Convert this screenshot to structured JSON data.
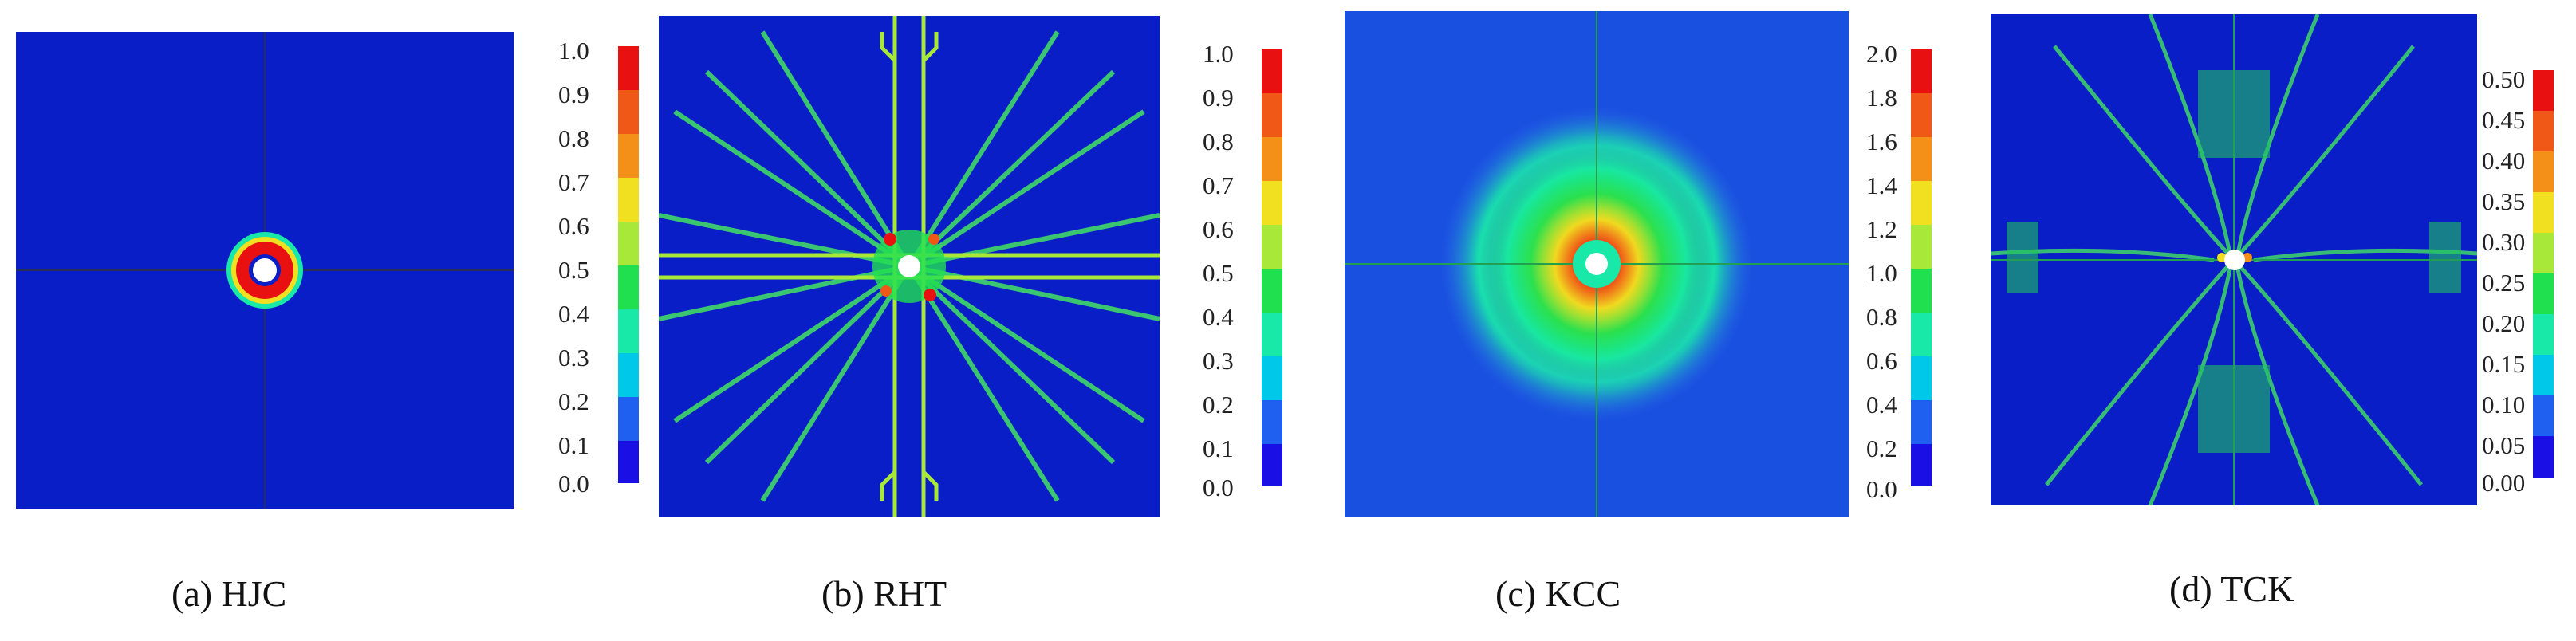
{
  "colors": [
    "#1a10e6",
    "#2060f0",
    "#00c8e8",
    "#18e8a8",
    "#20e050",
    "#a8e838",
    "#f0e020",
    "#f49018",
    "#f05818",
    "#e81010"
  ],
  "panels": [
    {
      "id": "a",
      "caption": "(a) HJC",
      "ticks": [
        "1.0",
        "0.9",
        "0.8",
        "0.7",
        "0.6",
        "0.5",
        "0.4",
        "0.3",
        "0.2",
        "0.1",
        "0.0"
      ]
    },
    {
      "id": "b",
      "caption": "(b) RHT",
      "ticks": [
        "1.0",
        "0.9",
        "0.8",
        "0.7",
        "0.6",
        "0.5",
        "0.4",
        "0.3",
        "0.2",
        "0.1",
        "0.0"
      ]
    },
    {
      "id": "c",
      "caption": "(c) KCC",
      "ticks": [
        "2.0",
        "1.8",
        "1.6",
        "1.4",
        "1.2",
        "1.0",
        "0.8",
        "0.6",
        "0.4",
        "0.2",
        "0.0"
      ]
    },
    {
      "id": "d",
      "caption": "(d) TCK",
      "ticks": [
        "0.50",
        "0.45",
        "0.40",
        "0.35",
        "0.30",
        "0.25",
        "0.20",
        "0.15",
        "0.10",
        "0.05",
        "0.00"
      ]
    }
  ]
}
